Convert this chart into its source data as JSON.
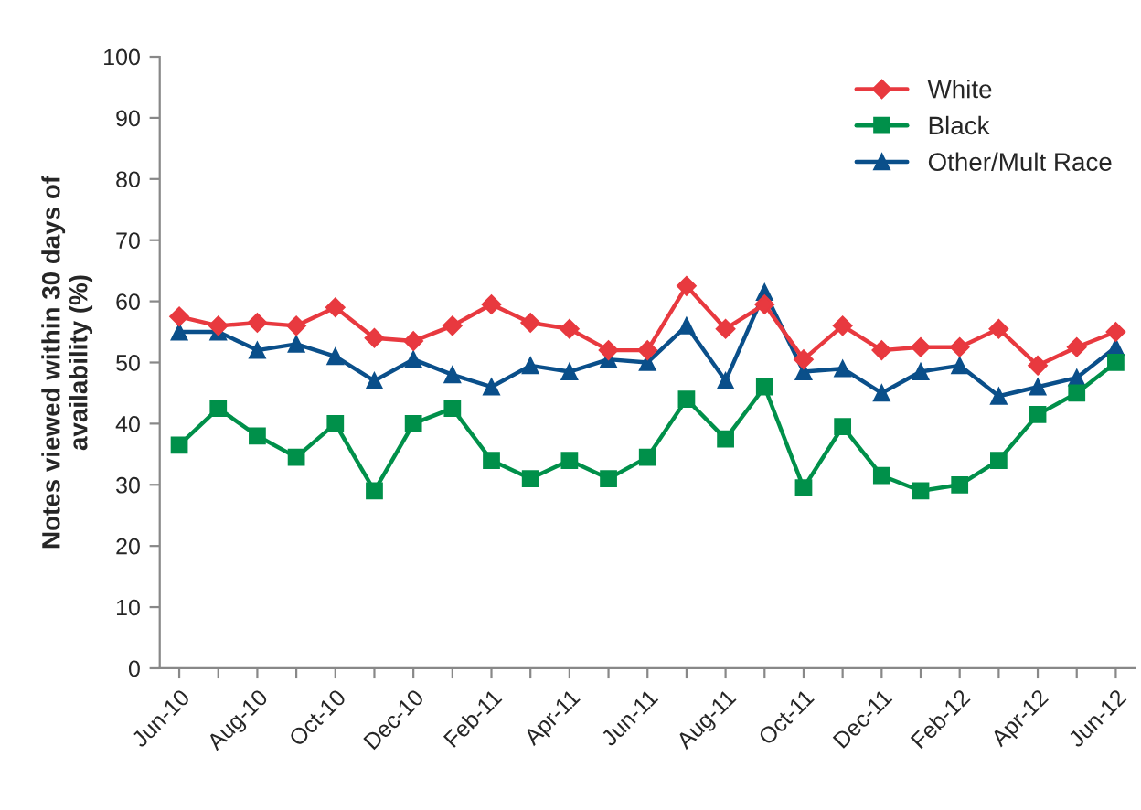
{
  "chart_data": {
    "type": "line",
    "ylabel": "Notes viewed within 30 days of\navailability (%)",
    "categories": [
      "Jun-10",
      null,
      "Aug-10",
      null,
      "Oct-10",
      null,
      "Dec-10",
      null,
      "Feb-11",
      null,
      "Apr-11",
      null,
      "Jun-11",
      null,
      "Aug-11",
      null,
      "Oct-11",
      null,
      "Dec-11",
      null,
      "Feb-12",
      null,
      "Apr-12",
      null,
      "Jun-12"
    ],
    "series": [
      {
        "name": "White",
        "color": "#e8393f",
        "marker": "diamond",
        "values": [
          57.5,
          56,
          56.5,
          56,
          59,
          54,
          53.5,
          56,
          59.5,
          56.5,
          55.5,
          52,
          52,
          62.5,
          55.5,
          59.5,
          50.5,
          56,
          52,
          52.5,
          52.5,
          55.5,
          49.5,
          52.5,
          55
        ]
      },
      {
        "name": "Black",
        "color": "#00904a",
        "marker": "square",
        "values": [
          36.5,
          42.5,
          38,
          34.5,
          40,
          29,
          40,
          42.5,
          34,
          31,
          34,
          31,
          34.5,
          44,
          37.5,
          46,
          29.5,
          39.5,
          31.5,
          29,
          30,
          34,
          41.5,
          45,
          50
        ]
      },
      {
        "name": "Other/Mult Race",
        "color": "#0a4f8a",
        "marker": "triangle",
        "values": [
          55,
          55,
          52,
          53,
          51,
          47,
          50.5,
          48,
          46,
          49.5,
          48.5,
          50.5,
          50,
          56,
          47,
          61.5,
          48.5,
          49,
          45,
          48.5,
          49.5,
          44.5,
          46,
          47.5,
          52.5
        ]
      }
    ],
    "ylim": [
      0,
      100
    ],
    "yticks": [
      0,
      10,
      20,
      30,
      40,
      50,
      60,
      70,
      80,
      90,
      100
    ],
    "legend": "top right",
    "grid": false,
    "line_style": "solid"
  }
}
